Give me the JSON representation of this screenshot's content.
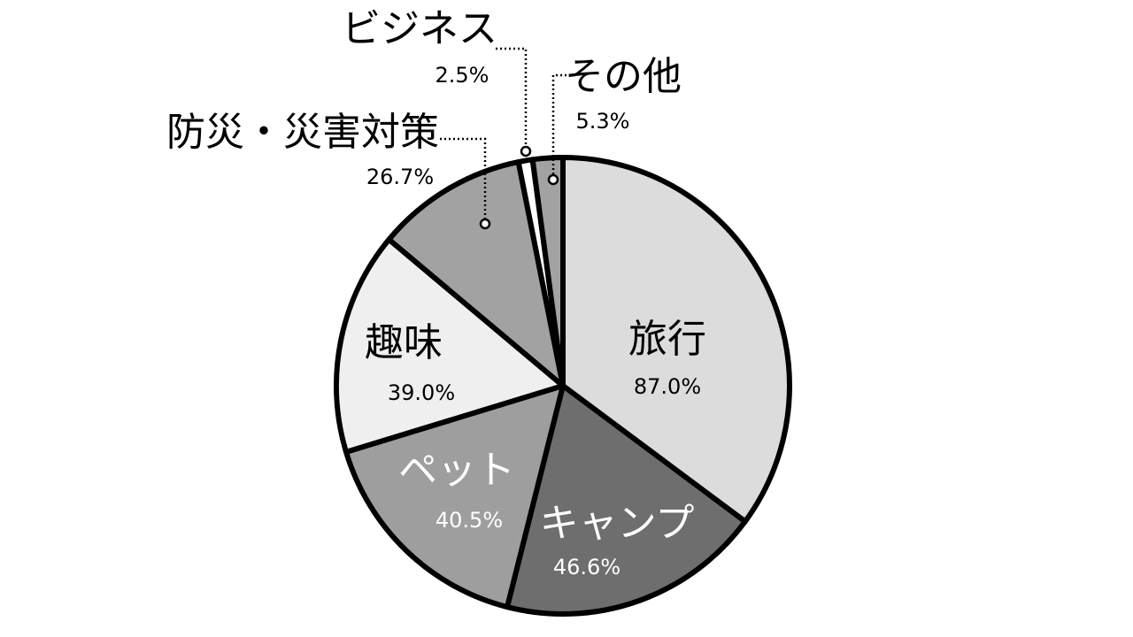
{
  "chart_data": {
    "type": "pie",
    "slices": [
      {
        "label": "旅行",
        "value": 87.0,
        "display": "87.0%",
        "color": "#dcdcdc",
        "text_color": "#000000"
      },
      {
        "label": "キャンプ",
        "value": 46.6,
        "display": "46.6%",
        "color": "#6e6e6e",
        "text_color": "#ffffff"
      },
      {
        "label": "ペット",
        "value": 40.5,
        "display": "40.5%",
        "color": "#9e9e9e",
        "text_color": "#ffffff"
      },
      {
        "label": "趣味",
        "value": 39.0,
        "display": "39.0%",
        "color": "#efefef",
        "text_color": "#000000"
      },
      {
        "label": "防災・災害対策",
        "value": 26.7,
        "display": "26.7%",
        "color": "#a2a2a2",
        "text_color": "#000000"
      },
      {
        "label": "ビジネス",
        "value": 2.5,
        "display": "2.5%",
        "color": "#ffffff",
        "text_color": "#000000"
      },
      {
        "label": "その他",
        "value": 5.3,
        "display": "5.3%",
        "color": "#a2a2a2",
        "text_color": "#000000"
      }
    ],
    "start": "12 o'clock",
    "direction": "clockwise",
    "label_placement": "inside for large slices; outside with dotted leader lines for small slices"
  }
}
